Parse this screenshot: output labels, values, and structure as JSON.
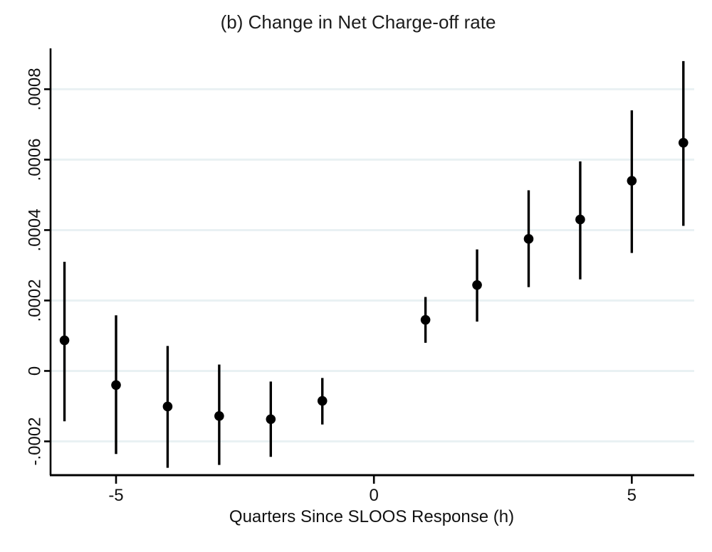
{
  "chart_data": {
    "type": "scatter",
    "subtype": "coefficient-plot-with-error-bars",
    "title": "(b) Change in Net Charge-off rate",
    "xlabel": "Quarters Since SLOOS Response (h)",
    "ylabel": "",
    "xlim": [
      -6.27,
      6.21
    ],
    "ylim": [
      -0.000296,
      0.000916
    ],
    "grid": true,
    "legend": false,
    "grid_color": "#e9f1f3",
    "axis_color": "#000000",
    "marker_color": "#000000",
    "errorbar_color": "#000000",
    "background_color": "#ffffff",
    "x_ticks": [
      {
        "value": -5,
        "label": "-5"
      },
      {
        "value": 0,
        "label": "0"
      },
      {
        "value": 5,
        "label": "5"
      }
    ],
    "y_ticks": [
      {
        "value": -0.0002,
        "label": "-.0002"
      },
      {
        "value": 0,
        "label": "0"
      },
      {
        "value": 0.0002,
        "label": ".0002"
      },
      {
        "value": 0.0004,
        "label": ".0004"
      },
      {
        "value": 0.0006,
        "label": ".0006"
      },
      {
        "value": 0.0008,
        "label": ".0008"
      }
    ],
    "series": [
      {
        "name": "coefficient estimate with confidence interval",
        "points": [
          {
            "x": -6,
            "y": 8.7e-05,
            "ci_low": -0.000143,
            "ci_high": 0.00031
          },
          {
            "x": -5,
            "y": -4e-05,
            "ci_low": -0.000236,
            "ci_high": 0.000158
          },
          {
            "x": -4,
            "y": -0.000101,
            "ci_low": -0.000275,
            "ci_high": 7.1e-05
          },
          {
            "x": -3,
            "y": -0.000128,
            "ci_low": -0.000267,
            "ci_high": 1.8e-05
          },
          {
            "x": -2,
            "y": -0.000137,
            "ci_low": -0.000244,
            "ci_high": -3e-05
          },
          {
            "x": -1,
            "y": -8.5e-05,
            "ci_low": -0.000152,
            "ci_high": -2e-05
          },
          {
            "x": 1,
            "y": 0.000145,
            "ci_low": 8e-05,
            "ci_high": 0.00021
          },
          {
            "x": 2,
            "y": 0.000244,
            "ci_low": 0.00014,
            "ci_high": 0.000345
          },
          {
            "x": 3,
            "y": 0.000375,
            "ci_low": 0.000238,
            "ci_high": 0.000513
          },
          {
            "x": 4,
            "y": 0.00043,
            "ci_low": 0.00026,
            "ci_high": 0.000595
          },
          {
            "x": 5,
            "y": 0.00054,
            "ci_low": 0.000335,
            "ci_high": 0.00074
          },
          {
            "x": 6,
            "y": 0.000648,
            "ci_low": 0.000412,
            "ci_high": 0.00088
          }
        ]
      }
    ]
  }
}
